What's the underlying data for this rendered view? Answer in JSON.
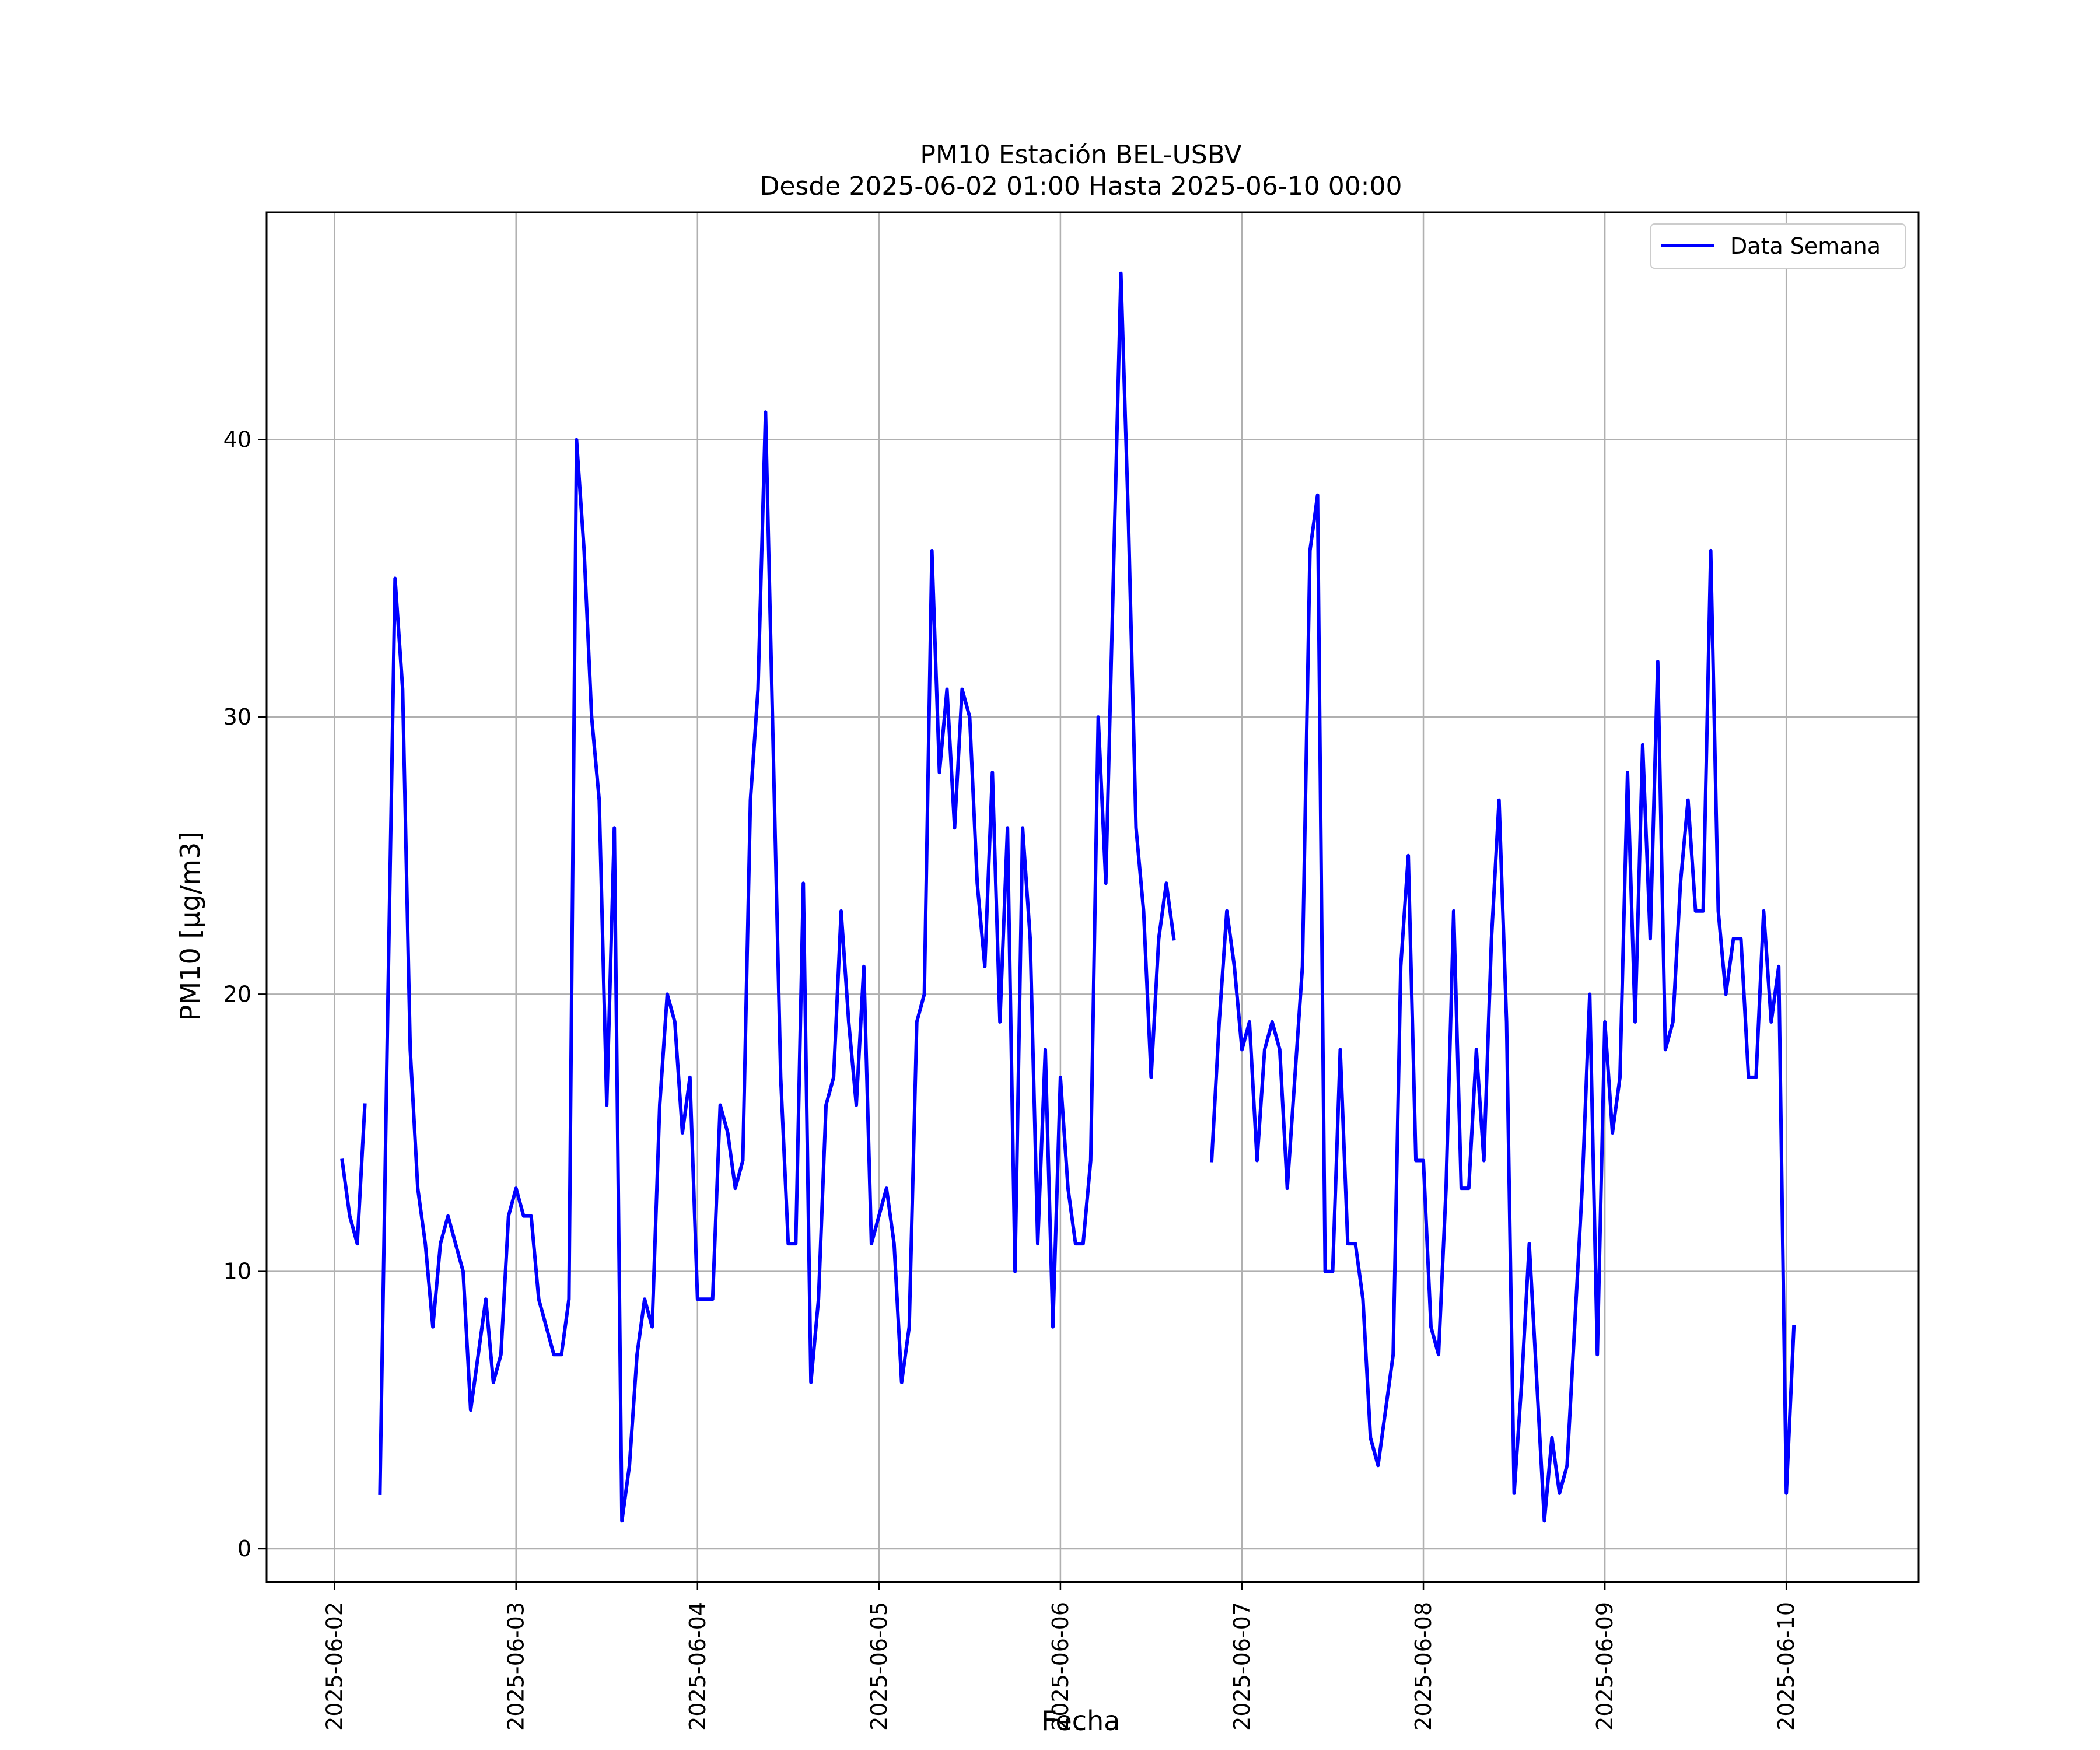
{
  "chart_data": {
    "type": "line",
    "title": "PM10 Estación BEL-USBV",
    "subtitle": "Desde 2025-06-02 01:00 Hasta 2025-06-10 00:00",
    "xlabel": "Fecha",
    "ylabel": "PM10 [μg/m3]",
    "x_ticks": [
      "2025-06-02",
      "2025-06-03",
      "2025-06-04",
      "2025-06-05",
      "2025-06-06",
      "2025-06-07",
      "2025-06-08",
      "2025-06-09",
      "2025-06-10"
    ],
    "y_ticks": [
      0,
      10,
      20,
      30,
      40
    ],
    "xlim": [
      "2025-06-01 15:00",
      "2025-06-10 17:30"
    ],
    "ylim": [
      -1.2,
      48.2
    ],
    "grid": true,
    "legend_position": "top-right",
    "line_color": "#0000ff",
    "series": [
      {
        "name": "Data Semana",
        "x_start": "2025-06-02 01:00",
        "x_step_hours": 1,
        "values": [
          14,
          12,
          11,
          16,
          null,
          2,
          19,
          35,
          31,
          18,
          13,
          11,
          8,
          11,
          12,
          11,
          10,
          5,
          7,
          9,
          6,
          7,
          12,
          13,
          12,
          12,
          9,
          8,
          7,
          7,
          9,
          40,
          36,
          30,
          27,
          16,
          26,
          1,
          3,
          7,
          9,
          8,
          16,
          20,
          19,
          15,
          17,
          9,
          9,
          9,
          16,
          15,
          13,
          14,
          27,
          31,
          41,
          29,
          17,
          11,
          11,
          24,
          6,
          9,
          16,
          17,
          23,
          19,
          16,
          21,
          11,
          12,
          13,
          11,
          6,
          8,
          19,
          20,
          36,
          28,
          31,
          26,
          31,
          30,
          24,
          21,
          28,
          19,
          26,
          10,
          26,
          22,
          11,
          18,
          8,
          17,
          13,
          11,
          11,
          14,
          30,
          24,
          35,
          46,
          37,
          26,
          23,
          17,
          22,
          24,
          22,
          null,
          null,
          null,
          null,
          14,
          19,
          23,
          21,
          18,
          19,
          14,
          18,
          19,
          18,
          13,
          17,
          21,
          36,
          38,
          10,
          10,
          18,
          11,
          11,
          9,
          4,
          3,
          5,
          7,
          21,
          25,
          14,
          14,
          8,
          7,
          13,
          23,
          13,
          13,
          18,
          14,
          22,
          27,
          19,
          2,
          6,
          11,
          6,
          1,
          4,
          2,
          3,
          8,
          13,
          20,
          7,
          19,
          15,
          17,
          28,
          19,
          29,
          22,
          32,
          18,
          19,
          24,
          27,
          23,
          23,
          36,
          23,
          20,
          22,
          22,
          17,
          17,
          23,
          19,
          21,
          2,
          8
        ]
      }
    ]
  }
}
